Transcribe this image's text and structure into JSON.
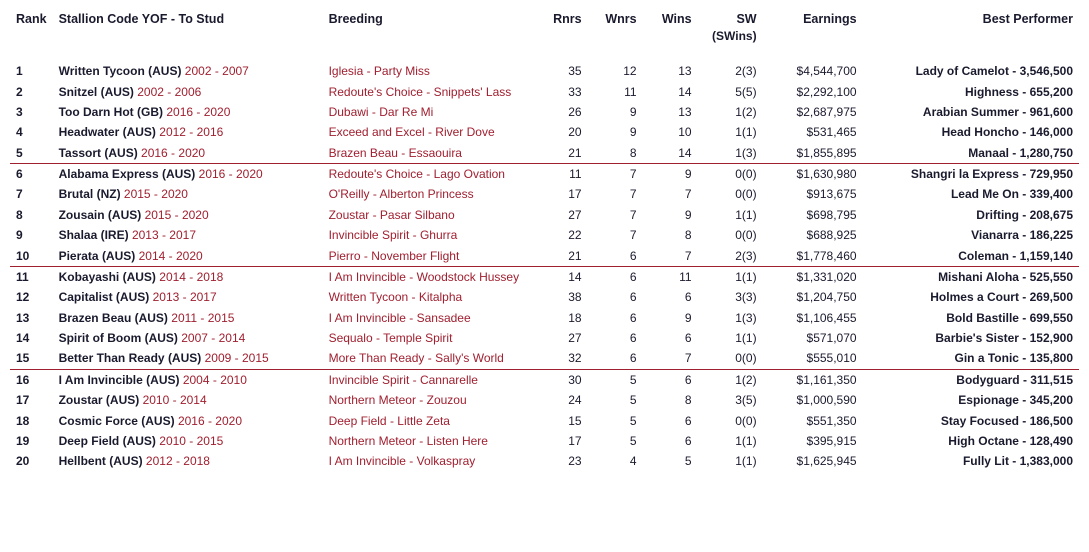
{
  "headers": {
    "rank": "Rank",
    "stallion": "Stallion Code YOF - To Stud",
    "breeding": "Breeding",
    "rnrs": "Rnrs",
    "wnrs": "Wnrs",
    "wins": "Wins",
    "sw": "SW",
    "sw_sub": "(SWins)",
    "earnings": "Earnings",
    "best": "Best Performer"
  },
  "colors": {
    "text": "#1a1a2e",
    "accent": "#a02030",
    "separator": "#a02030",
    "background": "#ffffff"
  },
  "rows": [
    {
      "rank": "1",
      "stallion": "Written Tycoon (AUS)",
      "years": "2002 - 2007",
      "breeding": "Iglesia - Party Miss",
      "rnrs": "35",
      "wnrs": "12",
      "wins": "13",
      "sw": "2(3)",
      "earnings": "$4,544,700",
      "best": "Lady of Camelot - 3,546,500"
    },
    {
      "rank": "2",
      "stallion": "Snitzel (AUS)",
      "years": "2002 - 2006",
      "breeding": "Redoute's Choice - Snippets' Lass",
      "rnrs": "33",
      "wnrs": "11",
      "wins": "14",
      "sw": "5(5)",
      "earnings": "$2,292,100",
      "best": "Highness - 655,200"
    },
    {
      "rank": "3",
      "stallion": "Too Darn Hot (GB)",
      "years": "2016 - 2020",
      "breeding": "Dubawi - Dar Re Mi",
      "rnrs": "26",
      "wnrs": "9",
      "wins": "13",
      "sw": "1(2)",
      "earnings": "$2,687,975",
      "best": "Arabian Summer - 961,600"
    },
    {
      "rank": "4",
      "stallion": "Headwater (AUS)",
      "years": "2012 - 2016",
      "breeding": "Exceed and Excel - River Dove",
      "rnrs": "20",
      "wnrs": "9",
      "wins": "10",
      "sw": "1(1)",
      "earnings": "$531,465",
      "best": "Head Honcho - 146,000"
    },
    {
      "rank": "5",
      "stallion": "Tassort (AUS)",
      "years": "2016 - 2020",
      "breeding": "Brazen Beau - Essaouira",
      "rnrs": "21",
      "wnrs": "8",
      "wins": "14",
      "sw": "1(3)",
      "earnings": "$1,855,895",
      "best": "Manaal - 1,280,750"
    },
    {
      "rank": "6",
      "stallion": "Alabama Express (AUS)",
      "years": "2016 - 2020",
      "breeding": "Redoute's Choice - Lago Ovation",
      "rnrs": "11",
      "wnrs": "7",
      "wins": "9",
      "sw": "0(0)",
      "earnings": "$1,630,980",
      "best": "Shangri la Express - 729,950"
    },
    {
      "rank": "7",
      "stallion": "Brutal (NZ)",
      "years": "2015 - 2020",
      "breeding": "O'Reilly - Alberton Princess",
      "rnrs": "17",
      "wnrs": "7",
      "wins": "7",
      "sw": "0(0)",
      "earnings": "$913,675",
      "best": "Lead Me On - 339,400"
    },
    {
      "rank": "8",
      "stallion": "Zousain (AUS)",
      "years": "2015 - 2020",
      "breeding": "Zoustar - Pasar Silbano",
      "rnrs": "27",
      "wnrs": "7",
      "wins": "9",
      "sw": "1(1)",
      "earnings": "$698,795",
      "best": "Drifting - 208,675"
    },
    {
      "rank": "9",
      "stallion": "Shalaa (IRE)",
      "years": "2013 - 2017",
      "breeding": "Invincible Spirit - Ghurra",
      "rnrs": "22",
      "wnrs": "7",
      "wins": "8",
      "sw": "0(0)",
      "earnings": "$688,925",
      "best": "Vianarra - 186,225"
    },
    {
      "rank": "10",
      "stallion": "Pierata (AUS)",
      "years": "2014 - 2020",
      "breeding": "Pierro - November Flight",
      "rnrs": "21",
      "wnrs": "6",
      "wins": "7",
      "sw": "2(3)",
      "earnings": "$1,778,460",
      "best": "Coleman - 1,159,140"
    },
    {
      "rank": "11",
      "stallion": "Kobayashi (AUS)",
      "years": "2014 - 2018",
      "breeding": "I Am Invincible - Woodstock Hussey",
      "rnrs": "14",
      "wnrs": "6",
      "wins": "11",
      "sw": "1(1)",
      "earnings": "$1,331,020",
      "best": "Mishani Aloha - 525,550"
    },
    {
      "rank": "12",
      "stallion": "Capitalist (AUS)",
      "years": "2013 - 2017",
      "breeding": "Written Tycoon - Kitalpha",
      "rnrs": "38",
      "wnrs": "6",
      "wins": "6",
      "sw": "3(3)",
      "earnings": "$1,204,750",
      "best": "Holmes a Court - 269,500"
    },
    {
      "rank": "13",
      "stallion": "Brazen Beau (AUS)",
      "years": "2011 - 2015",
      "breeding": "I Am Invincible - Sansadee",
      "rnrs": "18",
      "wnrs": "6",
      "wins": "9",
      "sw": "1(3)",
      "earnings": "$1,106,455",
      "best": "Bold Bastille - 699,550"
    },
    {
      "rank": "14",
      "stallion": "Spirit of Boom (AUS)",
      "years": "2007 - 2014",
      "breeding": "Sequalo - Temple Spirit",
      "rnrs": "27",
      "wnrs": "6",
      "wins": "6",
      "sw": "1(1)",
      "earnings": "$571,070",
      "best": "Barbie's Sister - 152,900"
    },
    {
      "rank": "15",
      "stallion": "Better Than Ready (AUS)",
      "years": "2009 - 2015",
      "breeding": "More Than Ready - Sally's World",
      "rnrs": "32",
      "wnrs": "6",
      "wins": "7",
      "sw": "0(0)",
      "earnings": "$555,010",
      "best": "Gin a Tonic - 135,800"
    },
    {
      "rank": "16",
      "stallion": "I Am Invincible (AUS)",
      "years": "2004 - 2010",
      "breeding": "Invincible Spirit - Cannarelle",
      "rnrs": "30",
      "wnrs": "5",
      "wins": "6",
      "sw": "1(2)",
      "earnings": "$1,161,350",
      "best": "Bodyguard - 311,515"
    },
    {
      "rank": "17",
      "stallion": "Zoustar (AUS)",
      "years": "2010 - 2014",
      "breeding": "Northern Meteor - Zouzou",
      "rnrs": "24",
      "wnrs": "5",
      "wins": "8",
      "sw": "3(5)",
      "earnings": "$1,000,590",
      "best": "Espionage - 345,200"
    },
    {
      "rank": "18",
      "stallion": "Cosmic Force (AUS)",
      "years": "2016 - 2020",
      "breeding": "Deep Field - Little Zeta",
      "rnrs": "15",
      "wnrs": "5",
      "wins": "6",
      "sw": "0(0)",
      "earnings": "$551,350",
      "best": "Stay Focused - 186,500"
    },
    {
      "rank": "19",
      "stallion": "Deep Field (AUS)",
      "years": "2010 - 2015",
      "breeding": "Northern Meteor - Listen Here",
      "rnrs": "17",
      "wnrs": "5",
      "wins": "6",
      "sw": "1(1)",
      "earnings": "$395,915",
      "best": "High Octane - 128,490"
    },
    {
      "rank": "20",
      "stallion": "Hellbent (AUS)",
      "years": "2012 - 2018",
      "breeding": "I Am Invincible - Volkaspray",
      "rnrs": "23",
      "wnrs": "4",
      "wins": "5",
      "sw": "1(1)",
      "earnings": "$1,625,945",
      "best": "Fully Lit - 1,383,000"
    }
  ],
  "separator_after": [
    5,
    10,
    15
  ]
}
